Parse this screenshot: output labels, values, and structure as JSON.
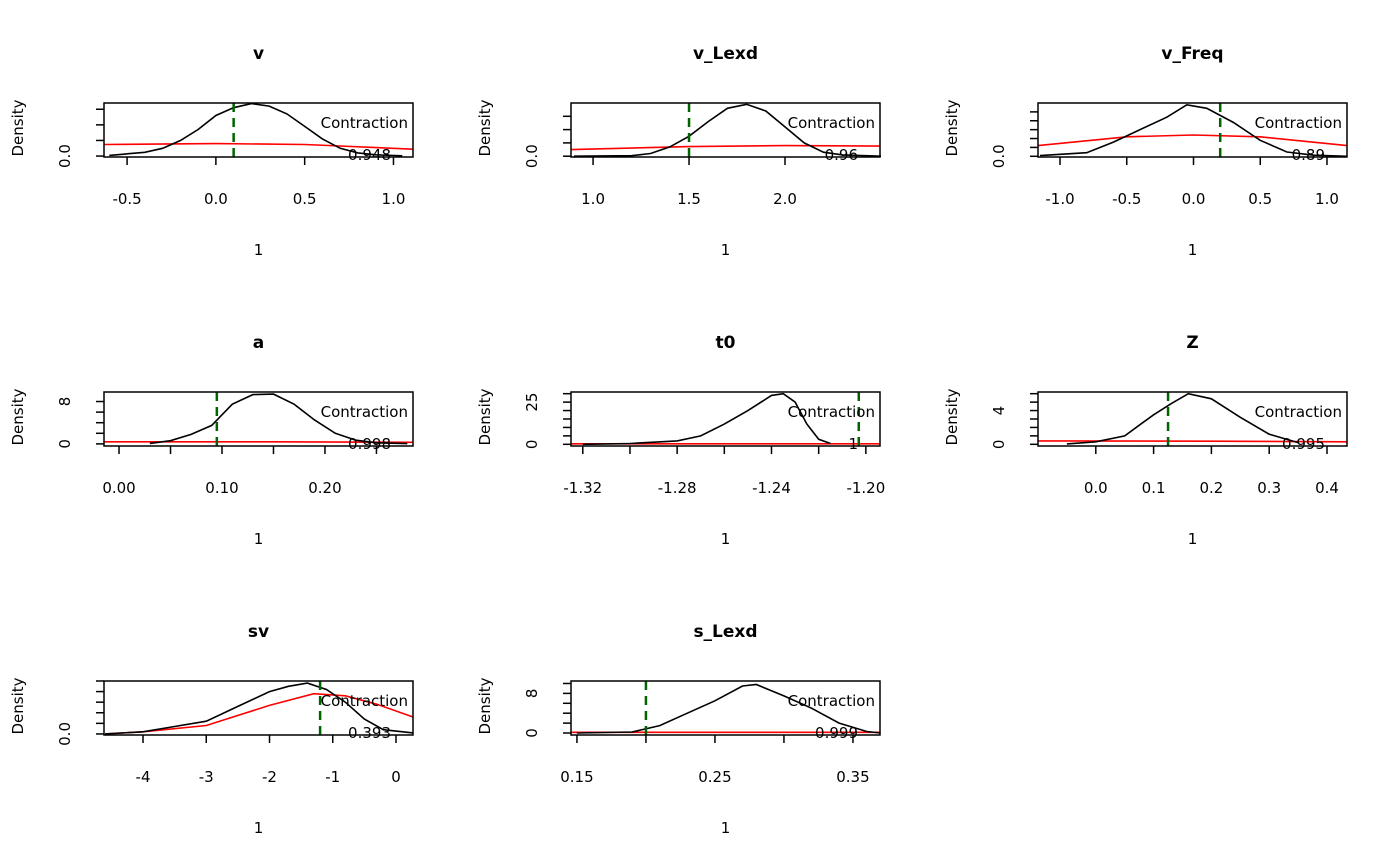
{
  "chart_data": [
    {
      "type": "line",
      "title": "v",
      "xlabel": "1",
      "ylabel": "Density",
      "xlim": [
        -0.63,
        1.11
      ],
      "ylim": [
        -0.03,
        1.7
      ],
      "x_ticks": [
        -0.5,
        0.0,
        0.5,
        1.0
      ],
      "x_tick_labels": [
        "-0.5",
        "0.0",
        "0.5",
        "1.0"
      ],
      "y_ticks": [
        0,
        0.5,
        1.0,
        1.5
      ],
      "y_tick_labels": [
        "0.0",
        "",
        "",
        ""
      ],
      "density": {
        "x": [
          -0.6,
          -0.4,
          -0.3,
          -0.2,
          -0.1,
          0,
          0.1,
          0.2,
          0.3,
          0.4,
          0.5,
          0.6,
          0.7,
          0.8,
          0.9,
          1.05
        ],
        "y": [
          0.02,
          0.12,
          0.25,
          0.5,
          0.85,
          1.3,
          1.55,
          1.68,
          1.6,
          1.35,
          0.95,
          0.55,
          0.25,
          0.1,
          0.04,
          0.01
        ]
      },
      "prior": {
        "x": [
          -0.63,
          0,
          0.5,
          1.11
        ],
        "y": [
          0.37,
          0.4,
          0.37,
          0.22
        ]
      },
      "vline": 0.1,
      "annotation": "Contraction",
      "contraction": "0.948"
    },
    {
      "type": "line",
      "title": "v_Lexd",
      "xlabel": "1",
      "ylabel": "Density",
      "xlim": [
        0.885,
        2.495
      ],
      "ylim": [
        -0.03,
        2.0
      ],
      "x_ticks": [
        1.0,
        1.5,
        2.0
      ],
      "x_tick_labels": [
        "1.0",
        "1.5",
        "2.0"
      ],
      "y_ticks": [
        0,
        0.5,
        1.0,
        1.5
      ],
      "y_tick_labels": [
        "0.0",
        "",
        "",
        ""
      ],
      "density": {
        "x": [
          0.9,
          1.2,
          1.3,
          1.4,
          1.5,
          1.6,
          1.7,
          1.8,
          1.9,
          2.0,
          2.1,
          2.2,
          2.3,
          2.5
        ],
        "y": [
          0,
          0.02,
          0.1,
          0.35,
          0.75,
          1.3,
          1.8,
          1.95,
          1.7,
          1.1,
          0.5,
          0.15,
          0.05,
          0
        ]
      },
      "prior": {
        "x": [
          0.885,
          1.5,
          2.0,
          2.495
        ],
        "y": [
          0.25,
          0.36,
          0.4,
          0.38
        ]
      },
      "vline": 1.5,
      "annotation": "Contraction",
      "contraction": "0.96"
    },
    {
      "type": "line",
      "title": "v_Freq",
      "xlabel": "1",
      "ylabel": "Density",
      "xlim": [
        -1.165,
        1.15
      ],
      "ylim": [
        -0.02,
        1.5
      ],
      "x_ticks": [
        -1.0,
        -0.5,
        0.0,
        0.5,
        1.0
      ],
      "x_tick_labels": [
        "-1.0",
        "-0.5",
        "0.0",
        "0.5",
        "1.0"
      ],
      "y_ticks": [
        0,
        0.25,
        0.5,
        0.75,
        1.0,
        1.25
      ],
      "y_tick_labels": [
        "0.0",
        "",
        "",
        "",
        "",
        ""
      ],
      "density": {
        "x": [
          -1.15,
          -0.8,
          -0.6,
          -0.4,
          -0.2,
          -0.05,
          0.1,
          0.3,
          0.5,
          0.7,
          0.9,
          1.15
        ],
        "y": [
          0.02,
          0.1,
          0.4,
          0.75,
          1.1,
          1.45,
          1.35,
          0.95,
          0.45,
          0.12,
          0.03,
          0
        ]
      },
      "prior": {
        "x": [
          -1.165,
          -0.5,
          0,
          0.5,
          1.15
        ],
        "y": [
          0.3,
          0.55,
          0.6,
          0.55,
          0.3
        ]
      },
      "vline": 0.2,
      "annotation": "Contraction",
      "contraction": "0.89"
    },
    {
      "type": "line",
      "title": "a",
      "xlabel": "1",
      "ylabel": "Density",
      "xlim": [
        -0.0146,
        0.2855
      ],
      "ylim": [
        -0.4,
        9.8
      ],
      "x_ticks": [
        0.0,
        0.05,
        0.1,
        0.15,
        0.2,
        0.25
      ],
      "x_tick_labels": [
        "0.00",
        "",
        "0.10",
        "",
        "0.20",
        ""
      ],
      "y_ticks": [
        0,
        2,
        4,
        6,
        8
      ],
      "y_tick_labels": [
        "0",
        "",
        "",
        "",
        "8"
      ],
      "density": {
        "x": [
          0.03,
          0.05,
          0.07,
          0.09,
          0.11,
          0.13,
          0.15,
          0.17,
          0.19,
          0.21,
          0.23,
          0.25,
          0.28
        ],
        "y": [
          0.1,
          0.6,
          1.8,
          3.5,
          7.5,
          9.3,
          9.4,
          7.5,
          4.5,
          2,
          0.7,
          0.2,
          0.05
        ]
      },
      "prior": {
        "x": [
          -0.0146,
          0.15,
          0.2855
        ],
        "y": [
          0.4,
          0.4,
          0.3
        ]
      },
      "vline": 0.095,
      "annotation": "Contraction",
      "contraction": "0.998"
    },
    {
      "type": "line",
      "title": "t0",
      "xlabel": "1",
      "ylabel": "Density",
      "xlim": [
        -1.325,
        -1.194
      ],
      "ylim": [
        -1,
        31
      ],
      "x_ticks": [
        -1.32,
        -1.3,
        -1.28,
        -1.26,
        -1.24,
        -1.22,
        -1.2
      ],
      "x_tick_labels": [
        "-1.32",
        "",
        "-1.28",
        "",
        "-1.24",
        "",
        "-1.20"
      ],
      "y_ticks": [
        0,
        5,
        10,
        15,
        20,
        25,
        30
      ],
      "y_tick_labels": [
        "0",
        "",
        "",
        "",
        "",
        "25",
        ""
      ],
      "density": {
        "x": [
          -1.32,
          -1.3,
          -1.28,
          -1.27,
          -1.26,
          -1.25,
          -1.24,
          -1.235,
          -1.23,
          -1.225,
          -1.22,
          -1.215
        ],
        "y": [
          0,
          0.5,
          2,
          5,
          12,
          20,
          29,
          30,
          25,
          12,
          3,
          0.5
        ]
      },
      "prior": {
        "x": [
          -1.325,
          -1.194
        ],
        "y": [
          0.3,
          0.3
        ]
      },
      "vline": -1.203,
      "annotation": "Contraction",
      "contraction": "1"
    },
    {
      "type": "line",
      "title": "Z",
      "xlabel": "1",
      "ylabel": "Density",
      "xlim": [
        -0.1,
        0.4346
      ],
      "ylim": [
        -0.2,
        6.2
      ],
      "x_ticks": [
        0.0,
        0.1,
        0.2,
        0.3,
        0.4
      ],
      "x_tick_labels": [
        "0.0",
        "0.1",
        "0.2",
        "0.3",
        "0.4"
      ],
      "y_ticks": [
        0,
        1,
        2,
        3,
        4,
        5,
        6
      ],
      "y_tick_labels": [
        "0",
        "",
        "",
        "",
        "4",
        "",
        ""
      ],
      "density": {
        "x": [
          -0.05,
          0,
          0.05,
          0.08,
          0.1,
          0.13,
          0.16,
          0.2,
          0.25,
          0.3,
          0.35
        ],
        "y": [
          0.05,
          0.3,
          1,
          2.5,
          3.5,
          4.8,
          6,
          5.4,
          3.2,
          1.2,
          0.2
        ]
      },
      "prior": {
        "x": [
          -0.1,
          0.2,
          0.4346
        ],
        "y": [
          0.4,
          0.37,
          0.3
        ]
      },
      "vline": 0.125,
      "annotation": "Contraction",
      "contraction": "0.995"
    },
    {
      "type": "line",
      "title": "sv",
      "xlabel": "1",
      "ylabel": "Density",
      "xlim": [
        -4.617,
        0.269
      ],
      "ylim": [
        -0.01,
        0.5
      ],
      "x_ticks": [
        -4,
        -3,
        -2,
        -1,
        0
      ],
      "x_tick_labels": [
        "-4",
        "-3",
        "-2",
        "-1",
        "0"
      ],
      "y_ticks": [
        0,
        0.1,
        0.2,
        0.3,
        0.4,
        0.5
      ],
      "y_tick_labels": [
        "0.0",
        "",
        "",
        "",
        "",
        ""
      ],
      "density": {
        "x": [
          -4.6,
          -4,
          -3.5,
          -3,
          -2.5,
          -2,
          -1.7,
          -1.4,
          -1.1,
          -0.8,
          -0.5,
          -0.2,
          0.27
        ],
        "y": [
          0,
          0.02,
          0.07,
          0.12,
          0.26,
          0.4,
          0.45,
          0.48,
          0.42,
          0.3,
          0.14,
          0.04,
          0.01
        ]
      },
      "prior": {
        "x": [
          -4.6,
          -4,
          -3,
          -2,
          -1.3,
          -0.8,
          -0.3,
          0.269
        ],
        "y": [
          0,
          0.02,
          0.08,
          0.27,
          0.38,
          0.36,
          0.28,
          0.16
        ]
      },
      "vline": -1.2,
      "annotation": "Contraction",
      "contraction": "0.393"
    },
    {
      "type": "line",
      "title": "s_Lexd",
      "xlabel": "1",
      "ylabel": "Density",
      "xlim": [
        0.1457,
        0.3696
      ],
      "ylim": [
        -0.4,
        10.5
      ],
      "x_ticks": [
        0.15,
        0.2,
        0.25,
        0.3,
        0.35
      ],
      "x_tick_labels": [
        "0.15",
        "",
        "0.25",
        "",
        "0.35"
      ],
      "y_ticks": [
        0,
        2,
        4,
        6,
        8,
        10
      ],
      "y_tick_labels": [
        "0",
        "",
        "",
        "",
        "8",
        ""
      ],
      "density": {
        "x": [
          0.15,
          0.19,
          0.21,
          0.23,
          0.25,
          0.27,
          0.28,
          0.3,
          0.32,
          0.34,
          0.36,
          0.37
        ],
        "y": [
          0,
          0.2,
          1.5,
          4,
          6.5,
          9.5,
          9.8,
          7.5,
          5,
          2,
          0.3,
          0
        ]
      },
      "prior": {
        "x": [
          0.1457,
          0.3696
        ],
        "y": [
          0.15,
          0.15
        ]
      },
      "vline": 0.2,
      "annotation": "Contraction",
      "contraction": "0.999"
    }
  ],
  "colors": {
    "density": "#000000",
    "prior": "#ff0000",
    "vline": "#006400"
  }
}
